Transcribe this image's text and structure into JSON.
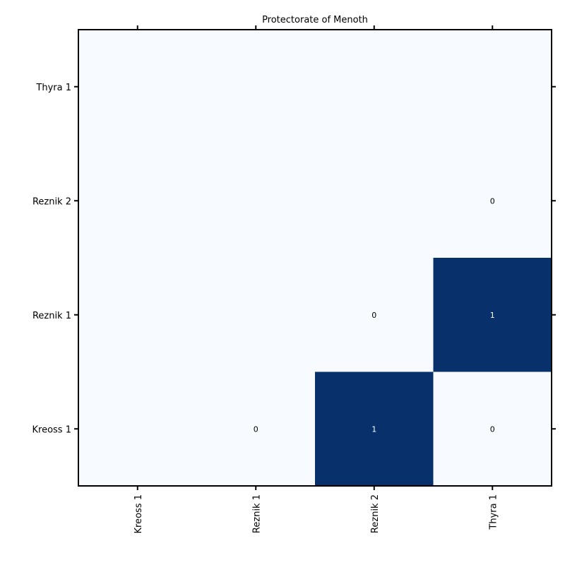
{
  "chart_data": {
    "type": "heatmap",
    "title": "Protectorate of Menoth",
    "x_categories": [
      "Kreoss 1",
      "Reznik 1",
      "Reznik 2",
      "Thyra 1"
    ],
    "y_categories": [
      "Kreoss 1",
      "Reznik 1",
      "Reznik 2",
      "Thyra 1"
    ],
    "cells": [
      {
        "x": "Reznik 1",
        "y": "Kreoss 1",
        "value": 0,
        "label": "0"
      },
      {
        "x": "Reznik 2",
        "y": "Kreoss 1",
        "value": 1,
        "label": "1"
      },
      {
        "x": "Thyra 1",
        "y": "Kreoss 1",
        "value": 0,
        "label": "0"
      },
      {
        "x": "Reznik 2",
        "y": "Reznik 1",
        "value": 0,
        "label": "0"
      },
      {
        "x": "Thyra 1",
        "y": "Reznik 1",
        "value": 1,
        "label": "1"
      },
      {
        "x": "Thyra 1",
        "y": "Reznik 2",
        "value": 0,
        "label": "0"
      }
    ],
    "value_range": [
      0,
      1
    ],
    "colormap": {
      "low": "#f7fbff",
      "high": "#08306b"
    },
    "label_colors": {
      "on_low": "#000000",
      "on_high": "#ffffff"
    },
    "grid": false,
    "legend": "none"
  }
}
